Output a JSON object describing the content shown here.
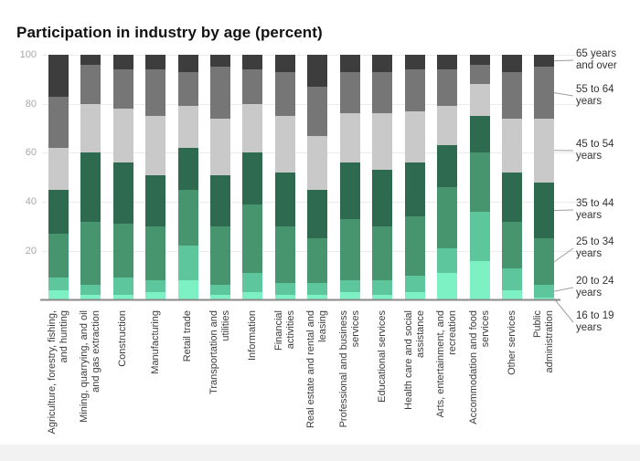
{
  "title": "Participation in industry by age (percent)",
  "chart_data": {
    "type": "bar",
    "stacked": true,
    "stack_order": "bottom-up",
    "title": "Participation in industry by age (percent)",
    "xlabel": "",
    "ylabel": "",
    "ylim": [
      0,
      100
    ],
    "yticks": [
      20,
      40,
      60,
      80,
      100
    ],
    "grid": true,
    "legend_position": "right",
    "categories": [
      "Agriculture, forestry, fishing, and hunting",
      "Mining, quarrying, and oil and gas extraction",
      "Construction",
      "Manufacturing",
      "Retail trade",
      "Transportation and utilities",
      "Information",
      "Financial activities",
      "Real estate and rental and leasing",
      "Professional and business services",
      "Educational services",
      "Health care and social assistance",
      "Arts, entertainment, and recreation",
      "Accommodation and food services",
      "Other services",
      "Public administration"
    ],
    "category_label_lines": [
      [
        "Agriculture, forestry, fishing,",
        "and hunting"
      ],
      [
        "Mining, quarrying, and oil",
        "and gas extraction"
      ],
      [
        "Construction"
      ],
      [
        "Manufacturing"
      ],
      [
        "Retail trade"
      ],
      [
        "Transportation and",
        "utilities"
      ],
      [
        "Information"
      ],
      [
        "Financial",
        "activities"
      ],
      [
        "Real estate and rental and",
        "leasing"
      ],
      [
        "Professional and business",
        "services"
      ],
      [
        "Educational services"
      ],
      [
        "Health care and social",
        "assistance"
      ],
      [
        "Arts, entertainment, and",
        "recreation"
      ],
      [
        "Accommodation and food",
        "services"
      ],
      [
        "Other services"
      ],
      [
        "Public",
        "administration"
      ]
    ],
    "series": [
      {
        "name": "16 to 19 years",
        "label_lines": [
          "16 to 19",
          "years"
        ],
        "color": "#7df0c4",
        "values": [
          4,
          2,
          2,
          3,
          8,
          2,
          3,
          2,
          2,
          3,
          2,
          3,
          11,
          16,
          4,
          1
        ]
      },
      {
        "name": "20 to 24 years",
        "label_lines": [
          "20 to 24",
          "years"
        ],
        "color": "#5ec69d",
        "values": [
          5,
          4,
          7,
          5,
          14,
          4,
          8,
          5,
          5,
          5,
          6,
          7,
          10,
          20,
          9,
          5
        ]
      },
      {
        "name": "25 to 34 years",
        "label_lines": [
          "25 to 34",
          "years"
        ],
        "color": "#46956f",
        "values": [
          18,
          26,
          22,
          22,
          23,
          24,
          28,
          23,
          18,
          25,
          22,
          24,
          25,
          24,
          19,
          19
        ]
      },
      {
        "name": "35 to 44 years",
        "label_lines": [
          "35 to 44",
          "years"
        ],
        "color": "#2d6a4f",
        "values": [
          18,
          28,
          25,
          21,
          17,
          21,
          21,
          22,
          20,
          23,
          23,
          22,
          17,
          15,
          20,
          23
        ]
      },
      {
        "name": "45 to 54 years",
        "label_lines": [
          "45 to 54",
          "years"
        ],
        "color": "#c9c9c9",
        "values": [
          17,
          20,
          22,
          24,
          17,
          23,
          20,
          23,
          22,
          20,
          23,
          21,
          16,
          13,
          22,
          26
        ]
      },
      {
        "name": "55 to 64 years",
        "label_lines": [
          "55 to 64",
          "years"
        ],
        "color": "#767676",
        "values": [
          21,
          16,
          16,
          19,
          14,
          21,
          14,
          18,
          20,
          17,
          17,
          17,
          15,
          8,
          19,
          21
        ]
      },
      {
        "name": "65 years and over",
        "label_lines": [
          "65 years",
          "and over"
        ],
        "color": "#3d3d3d",
        "values": [
          17,
          4,
          6,
          6,
          7,
          5,
          6,
          7,
          13,
          7,
          7,
          6,
          6,
          4,
          7,
          5
        ]
      }
    ]
  }
}
